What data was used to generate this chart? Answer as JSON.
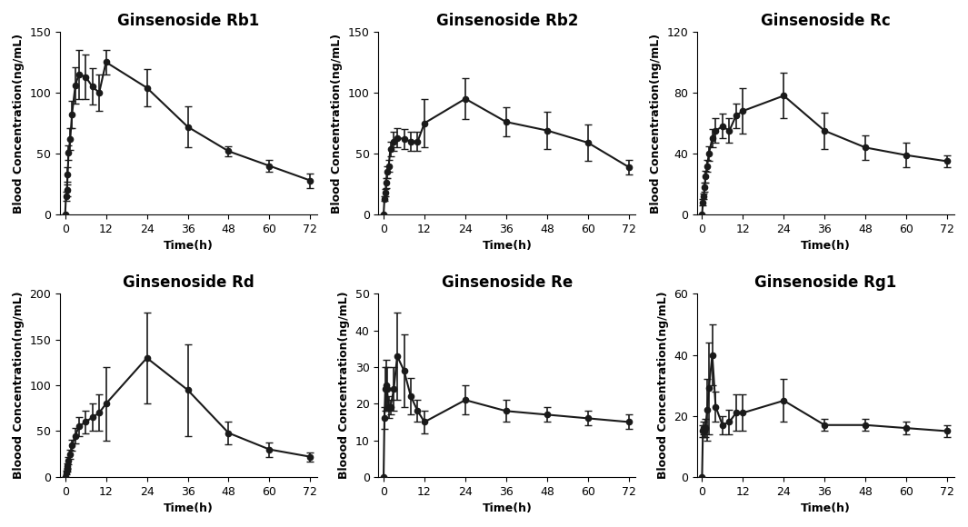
{
  "subplots": [
    {
      "title": "Ginsenoside Rb1",
      "ylabel": "Blood Concentration(ng/mL)",
      "xlabel": "Time(h)",
      "ylim": [
        0,
        150
      ],
      "yticks": [
        0,
        50,
        100,
        150
      ],
      "xticks": [
        0,
        12,
        24,
        36,
        48,
        60,
        72
      ],
      "xmin": -1.5,
      "xmax": 74,
      "time": [
        0,
        0.25,
        0.5,
        0.75,
        1,
        1.5,
        2,
        3,
        4,
        6,
        8,
        10,
        12,
        24,
        36,
        48,
        60,
        72
      ],
      "mean": [
        0,
        15,
        20,
        33,
        51,
        62,
        82,
        106,
        115,
        113,
        105,
        100,
        125,
        104,
        72,
        52,
        40,
        28
      ],
      "err": [
        0,
        4,
        5,
        6,
        6,
        9,
        11,
        15,
        20,
        18,
        15,
        15,
        10,
        15,
        17,
        4,
        5,
        6
      ]
    },
    {
      "title": "Ginsenoside Rb2",
      "ylabel": "Blood Concentration(ng/mL)",
      "xlabel": "Time(h)",
      "ylim": [
        0,
        150
      ],
      "yticks": [
        0,
        50,
        100,
        150
      ],
      "xticks": [
        0,
        12,
        24,
        36,
        48,
        60,
        72
      ],
      "xmin": -1.5,
      "xmax": 74,
      "time": [
        0,
        0.25,
        0.5,
        0.75,
        1,
        1.5,
        2,
        3,
        4,
        6,
        8,
        10,
        12,
        24,
        36,
        48,
        60,
        72
      ],
      "mean": [
        0,
        13,
        18,
        26,
        35,
        40,
        54,
        60,
        63,
        62,
        60,
        60,
        75,
        95,
        76,
        69,
        59,
        39
      ],
      "err": [
        0,
        2,
        3,
        4,
        5,
        5,
        6,
        8,
        8,
        8,
        8,
        8,
        20,
        17,
        12,
        15,
        15,
        6
      ]
    },
    {
      "title": "Ginsenoside Rc",
      "ylabel": "Blood Concentration(ng/mL)",
      "xlabel": "Time(h)",
      "ylim": [
        0,
        120
      ],
      "yticks": [
        0,
        40,
        80,
        120
      ],
      "xticks": [
        0,
        12,
        24,
        36,
        48,
        60,
        72
      ],
      "xmin": -1.5,
      "xmax": 74,
      "time": [
        0,
        0.25,
        0.5,
        0.75,
        1,
        1.5,
        2,
        3,
        4,
        6,
        8,
        10,
        12,
        24,
        36,
        48,
        60,
        72
      ],
      "mean": [
        0,
        8,
        12,
        18,
        25,
        32,
        40,
        50,
        55,
        58,
        55,
        65,
        68,
        78,
        55,
        44,
        39,
        35
      ],
      "err": [
        0,
        2,
        2,
        3,
        4,
        4,
        5,
        6,
        8,
        8,
        8,
        8,
        15,
        15,
        12,
        8,
        8,
        4
      ]
    },
    {
      "title": "Ginsenoside Rd",
      "ylabel": "Bloood Concentration(ng/mL)",
      "xlabel": "Time(h)",
      "ylim": [
        0,
        200
      ],
      "yticks": [
        0,
        50,
        100,
        150,
        200
      ],
      "xticks": [
        0,
        12,
        24,
        36,
        48,
        60,
        72
      ],
      "xmin": -1.5,
      "xmax": 74,
      "time": [
        0,
        0.25,
        0.5,
        0.75,
        1,
        1.5,
        2,
        3,
        4,
        6,
        8,
        10,
        12,
        24,
        36,
        48,
        60,
        72
      ],
      "mean": [
        0,
        5,
        8,
        12,
        18,
        25,
        35,
        45,
        55,
        60,
        65,
        70,
        80,
        130,
        95,
        48,
        30,
        22
      ],
      "err": [
        0,
        2,
        2,
        3,
        4,
        5,
        6,
        8,
        10,
        12,
        15,
        20,
        40,
        50,
        50,
        12,
        8,
        5
      ]
    },
    {
      "title": "Ginsenoside Re",
      "ylabel": "Bloood Concentration(ng/mL)",
      "xlabel": "Time(h)",
      "ylim": [
        0,
        50
      ],
      "yticks": [
        0,
        10,
        20,
        30,
        40,
        50
      ],
      "xticks": [
        0,
        12,
        24,
        36,
        48,
        60,
        72
      ],
      "xmin": -1.5,
      "xmax": 74,
      "time": [
        0,
        0.25,
        0.5,
        0.75,
        1,
        1.5,
        2,
        3,
        4,
        6,
        8,
        10,
        12,
        24,
        36,
        48,
        60,
        72
      ],
      "mean": [
        0,
        16,
        24,
        25,
        24,
        19,
        19,
        24,
        33,
        29,
        22,
        18,
        15,
        21,
        18,
        17,
        16,
        15
      ],
      "err": [
        0,
        3,
        6,
        7,
        6,
        3,
        2,
        6,
        12,
        10,
        5,
        3,
        3,
        4,
        3,
        2,
        2,
        2
      ]
    },
    {
      "title": "Ginsenoside Rg1",
      "ylabel": "Bloood Concentration(ng/mL)",
      "xlabel": "Time(h)",
      "ylim": [
        0,
        60
      ],
      "yticks": [
        0,
        20,
        40,
        60
      ],
      "xticks": [
        0,
        12,
        24,
        36,
        48,
        60,
        72
      ],
      "xmin": -1.5,
      "xmax": 74,
      "time": [
        0,
        0.25,
        0.5,
        0.75,
        1,
        1.5,
        2,
        3,
        4,
        6,
        8,
        10,
        12,
        24,
        36,
        48,
        60,
        72
      ],
      "mean": [
        0,
        15,
        16,
        15,
        16,
        22,
        29,
        40,
        23,
        17,
        18,
        21,
        21,
        25,
        17,
        17,
        16,
        15
      ],
      "err": [
        0,
        2,
        2,
        2,
        3,
        10,
        15,
        10,
        5,
        3,
        4,
        6,
        6,
        7,
        2,
        2,
        2,
        2
      ]
    }
  ],
  "line_color": "#1a1a1a",
  "marker": "o",
  "markersize": 4.5,
  "linewidth": 1.5,
  "capsize": 3,
  "elinewidth": 1.2,
  "title_fontsize": 12,
  "label_fontsize": 9,
  "tick_fontsize": 9,
  "title_fontweight": "bold",
  "label_fontweight": "bold"
}
